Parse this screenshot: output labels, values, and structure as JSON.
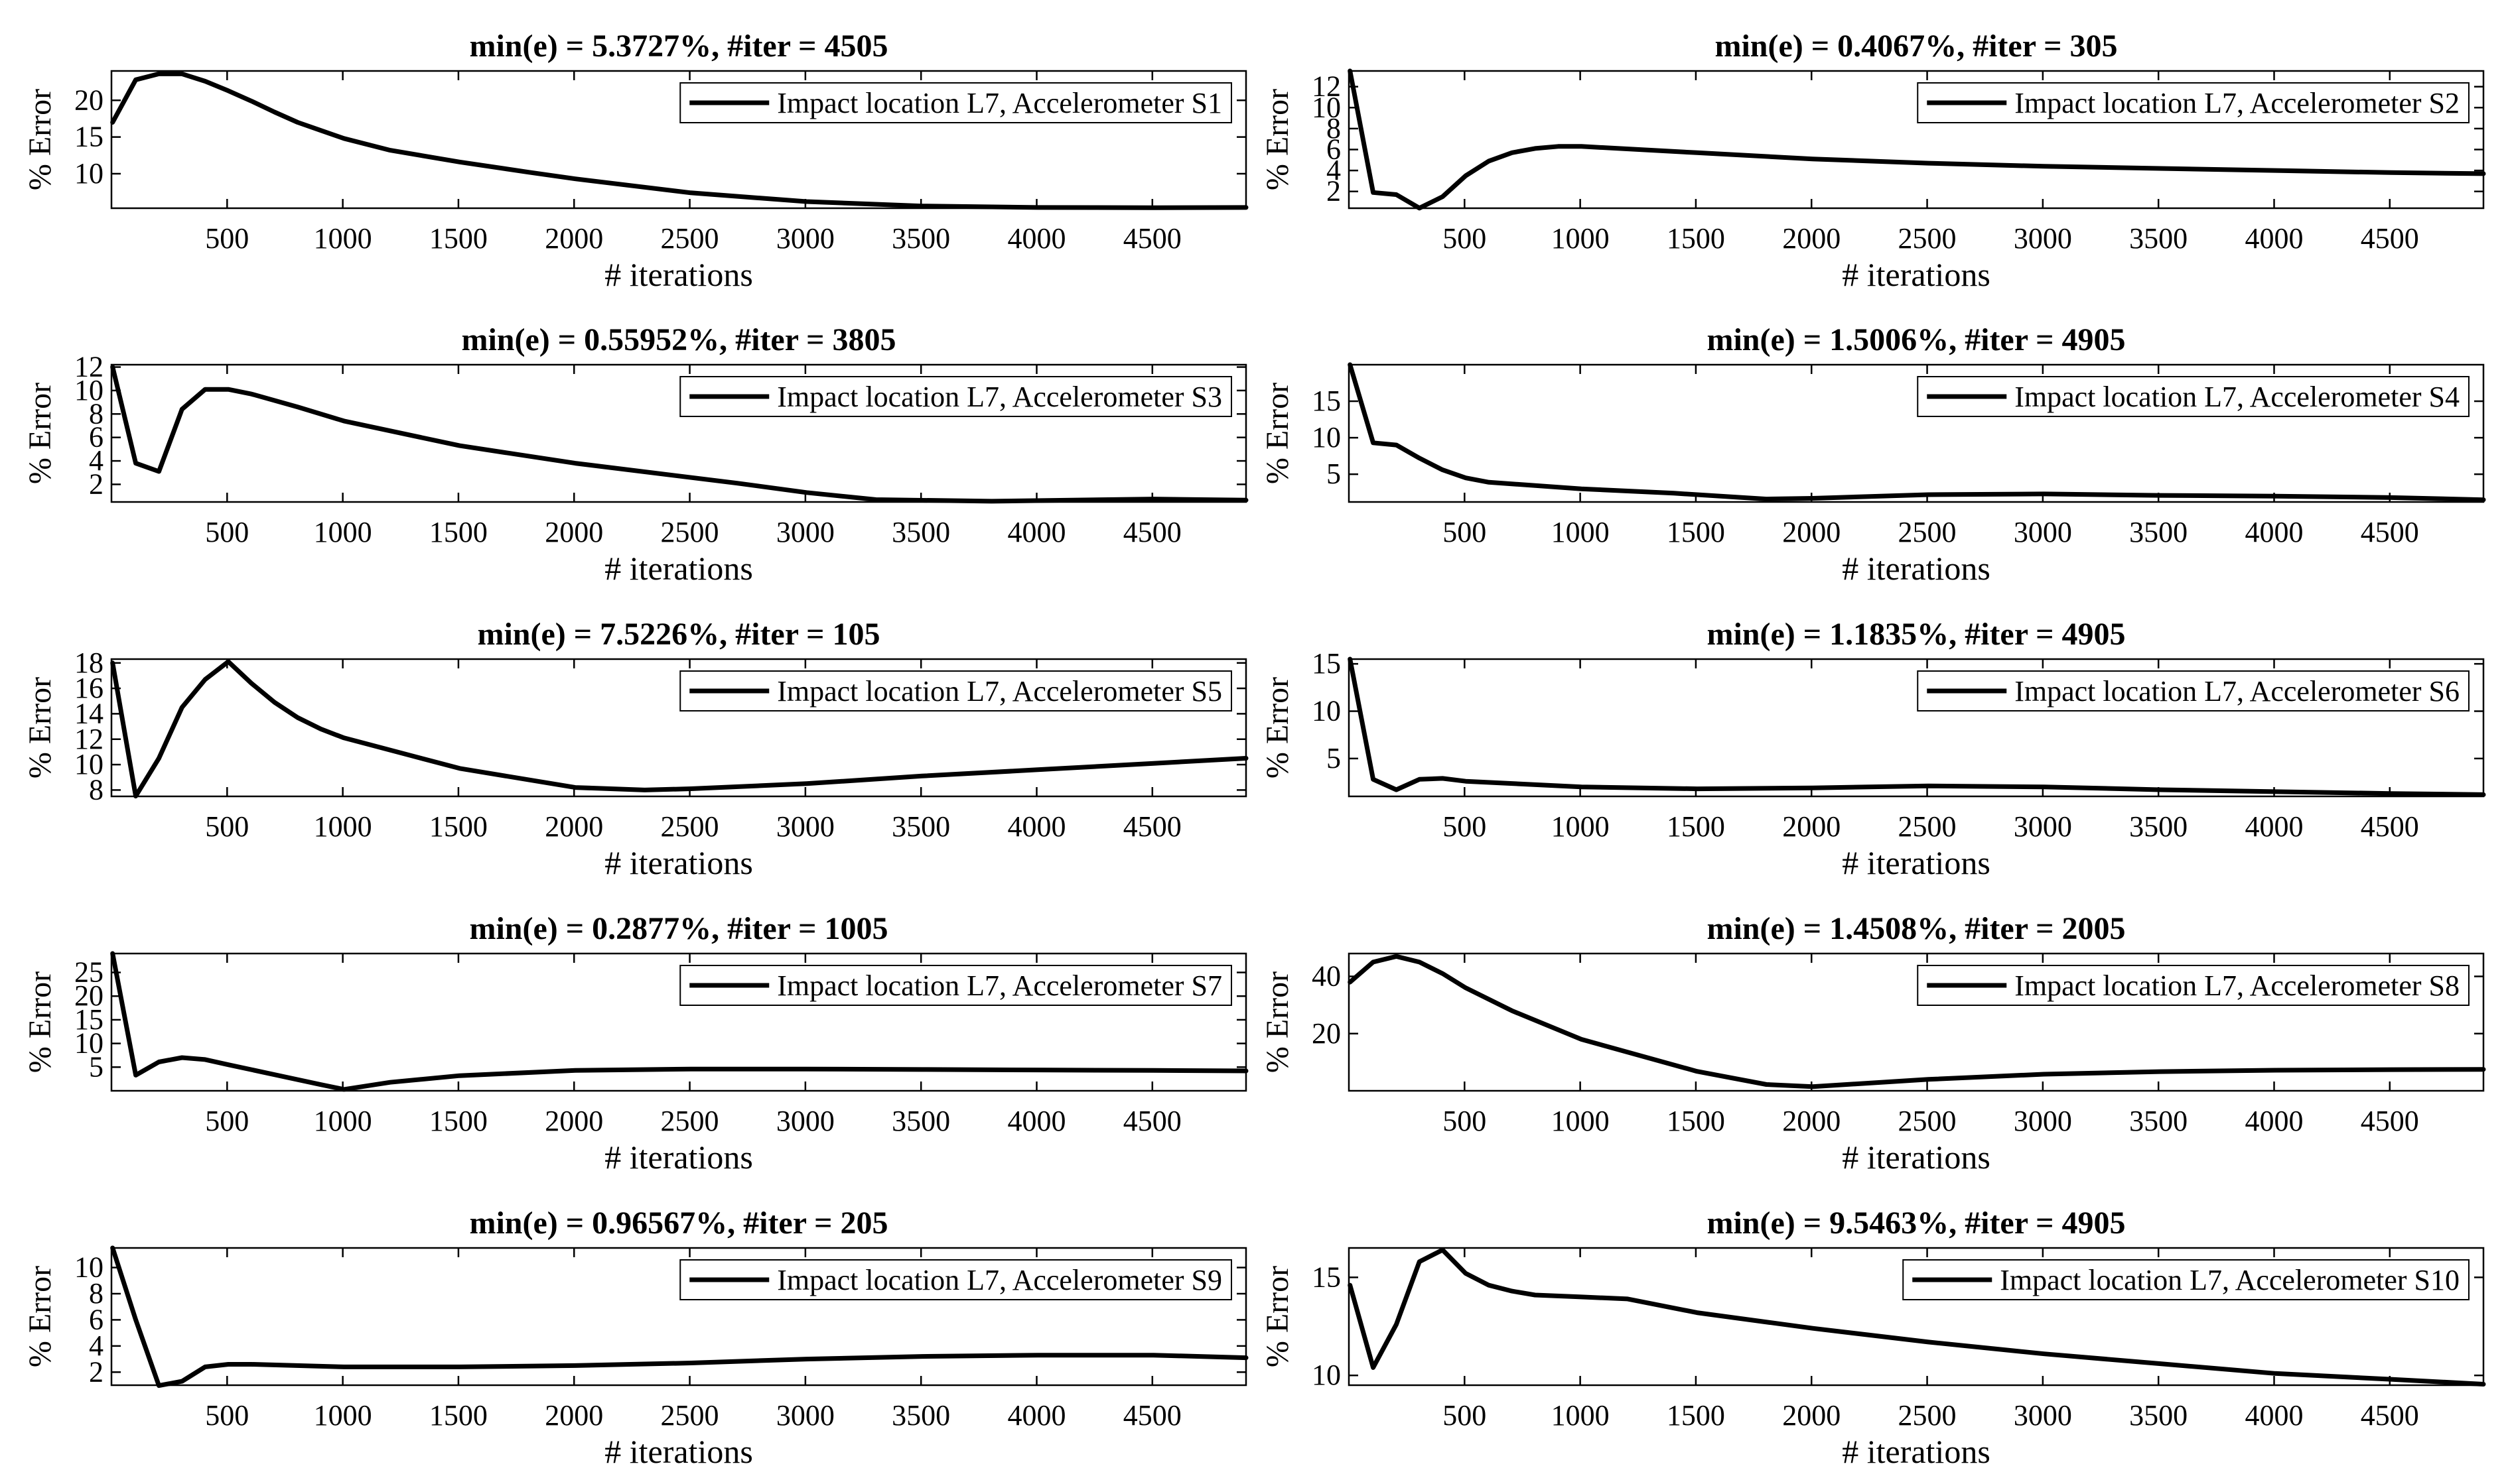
{
  "chart_data": [
    {
      "type": "line",
      "title": "min(e) = 5.3727%, #iter = 4505",
      "xlabel": "# iterations",
      "ylabel": "% Error",
      "xlim": [
        0,
        4905
      ],
      "ylim": [
        5.3,
        24
      ],
      "xticks": [
        500,
        1000,
        1500,
        2000,
        2500,
        3000,
        3500,
        4000,
        4500
      ],
      "yticks": [
        10,
        15,
        20
      ],
      "legend": "top-right",
      "grid": false,
      "series": [
        {
          "name": "Impact location L7, Accelerometer S1",
          "x": [
            5,
            105,
            205,
            305,
            405,
            505,
            605,
            705,
            805,
            905,
            1005,
            1205,
            1505,
            1805,
            2005,
            2505,
            3005,
            3505,
            4005,
            4505,
            4905
          ],
          "y": [
            17,
            22.8,
            23.6,
            23.6,
            22.6,
            21.3,
            19.9,
            18.4,
            17,
            15.9,
            14.8,
            13.2,
            11.6,
            10.2,
            9.3,
            7.4,
            6.2,
            5.6,
            5.4,
            5.37,
            5.4
          ]
        }
      ]
    },
    {
      "type": "line",
      "title": "min(e) = 0.4067%, #iter = 305",
      "xlabel": "# iterations",
      "ylabel": "% Error",
      "xlim": [
        0,
        4905
      ],
      "ylim": [
        0.4,
        13.5
      ],
      "xticks": [
        500,
        1000,
        1500,
        2000,
        2500,
        3000,
        3500,
        4000,
        4500
      ],
      "yticks": [
        2,
        4,
        6,
        8,
        10,
        12
      ],
      "legend": "top-right",
      "grid": false,
      "series": [
        {
          "name": "Impact location L7, Accelerometer S2",
          "x": [
            5,
            105,
            205,
            305,
            405,
            505,
            605,
            705,
            805,
            905,
            1005,
            1505,
            2005,
            2505,
            3005,
            3505,
            4005,
            4505,
            4905
          ],
          "y": [
            13.5,
            1.9,
            1.7,
            0.41,
            1.5,
            3.5,
            4.9,
            5.7,
            6.1,
            6.3,
            6.3,
            5.7,
            5.1,
            4.7,
            4.4,
            4.2,
            4.0,
            3.8,
            3.7
          ]
        }
      ]
    },
    {
      "type": "line",
      "title": "min(e) = 0.55952%, #iter = 3805",
      "xlabel": "# iterations",
      "ylabel": "% Error",
      "xlim": [
        0,
        4905
      ],
      "ylim": [
        0.5,
        12.2
      ],
      "xticks": [
        500,
        1000,
        1500,
        2000,
        2500,
        3000,
        3500,
        4000,
        4500
      ],
      "yticks": [
        2,
        4,
        6,
        8,
        10,
        12
      ],
      "legend": "top-right",
      "grid": false,
      "series": [
        {
          "name": "Impact location L7, Accelerometer S3",
          "x": [
            5,
            105,
            205,
            305,
            405,
            505,
            605,
            805,
            1005,
            1505,
            2005,
            2705,
            3005,
            3305,
            3805,
            4505,
            4905
          ],
          "y": [
            12,
            3.8,
            3.1,
            8.4,
            10.1,
            10.1,
            9.7,
            8.6,
            7.4,
            5.3,
            3.8,
            2.1,
            1.3,
            0.7,
            0.56,
            0.75,
            0.65
          ]
        }
      ]
    },
    {
      "type": "line",
      "title": "min(e) = 1.5006%, #iter = 4905",
      "xlabel": "# iterations",
      "ylabel": "% Error",
      "xlim": [
        0,
        4905
      ],
      "ylim": [
        1.2,
        20
      ],
      "xticks": [
        500,
        1000,
        1500,
        2000,
        2500,
        3000,
        3500,
        4000,
        4500
      ],
      "yticks": [
        5,
        10,
        15
      ],
      "legend": "top-right",
      "grid": false,
      "series": [
        {
          "name": "Impact location L7, Accelerometer S4",
          "x": [
            5,
            105,
            205,
            305,
            405,
            505,
            605,
            1005,
            1405,
            1805,
            2005,
            2505,
            3005,
            3505,
            4005,
            4505,
            4905
          ],
          "y": [
            20,
            9.3,
            9,
            7.2,
            5.6,
            4.5,
            3.9,
            3.0,
            2.4,
            1.6,
            1.7,
            2.2,
            2.3,
            2.1,
            2.0,
            1.8,
            1.5
          ]
        }
      ]
    },
    {
      "type": "line",
      "title": "min(e) = 7.5226%, #iter = 105",
      "xlabel": "# iterations",
      "ylabel": "% Error",
      "xlim": [
        0,
        4905
      ],
      "ylim": [
        7.5,
        18.3
      ],
      "xticks": [
        500,
        1000,
        1500,
        2000,
        2500,
        3000,
        3500,
        4000,
        4500
      ],
      "yticks": [
        8,
        10,
        12,
        14,
        16,
        18
      ],
      "legend": "top-right",
      "grid": false,
      "series": [
        {
          "name": "Impact location L7, Accelerometer S5",
          "x": [
            5,
            105,
            205,
            305,
            405,
            505,
            605,
            705,
            805,
            905,
            1005,
            1505,
            2005,
            2305,
            2505,
            3005,
            3505,
            4005,
            4505,
            4905
          ],
          "y": [
            18,
            7.52,
            10.5,
            14.5,
            16.7,
            18.1,
            16.4,
            14.9,
            13.7,
            12.8,
            12.1,
            9.7,
            8.2,
            8.0,
            8.1,
            8.5,
            9.1,
            9.6,
            10.1,
            10.5
          ]
        }
      ]
    },
    {
      "type": "line",
      "title": "min(e) = 1.1835%, #iter = 4905",
      "xlabel": "# iterations",
      "ylabel": "% Error",
      "xlim": [
        0,
        4905
      ],
      "ylim": [
        1,
        15.5
      ],
      "xticks": [
        500,
        1000,
        1500,
        2000,
        2500,
        3000,
        3500,
        4000,
        4500
      ],
      "yticks": [
        5,
        10,
        15
      ],
      "legend": "top-right",
      "grid": false,
      "series": [
        {
          "name": "Impact location L7, Accelerometer S6",
          "x": [
            5,
            105,
            205,
            305,
            405,
            505,
            1005,
            1505,
            2005,
            2505,
            3005,
            3505,
            4005,
            4505,
            4905
          ],
          "y": [
            15.5,
            2.8,
            1.7,
            2.8,
            2.9,
            2.6,
            2.0,
            1.8,
            1.9,
            2.1,
            2.0,
            1.7,
            1.5,
            1.3,
            1.18
          ]
        }
      ]
    },
    {
      "type": "line",
      "title": "min(e) = 0.2877%, #iter = 1005",
      "xlabel": "# iterations",
      "ylabel": "% Error",
      "xlim": [
        0,
        4905
      ],
      "ylim": [
        0,
        29
      ],
      "xticks": [
        500,
        1000,
        1500,
        2000,
        2500,
        3000,
        3500,
        4000,
        4500
      ],
      "yticks": [
        5,
        10,
        15,
        20,
        25
      ],
      "legend": "top-right",
      "grid": false,
      "series": [
        {
          "name": "Impact location L7, Accelerometer S7",
          "x": [
            5,
            105,
            205,
            305,
            405,
            505,
            705,
            905,
            1005,
            1205,
            1505,
            2005,
            2505,
            3005,
            3505,
            4005,
            4505,
            4905
          ],
          "y": [
            29,
            3.3,
            6.1,
            7.0,
            6.6,
            5.5,
            3.4,
            1.3,
            0.29,
            1.8,
            3.2,
            4.3,
            4.6,
            4.6,
            4.5,
            4.4,
            4.3,
            4.2
          ]
        }
      ]
    },
    {
      "type": "line",
      "title": "min(e) = 1.4508%, #iter = 2005",
      "xlabel": "# iterations",
      "ylabel": "% Error",
      "xlim": [
        0,
        4905
      ],
      "ylim": [
        0,
        48
      ],
      "xticks": [
        500,
        1000,
        1500,
        2000,
        2500,
        3000,
        3500,
        4000,
        4500
      ],
      "yticks": [
        20,
        40
      ],
      "legend": "top-right",
      "grid": false,
      "series": [
        {
          "name": "Impact location L7, Accelerometer S8",
          "x": [
            5,
            105,
            205,
            305,
            405,
            505,
            705,
            1005,
            1505,
            1805,
            2005,
            2505,
            3005,
            3505,
            4005,
            4505,
            4905
          ],
          "y": [
            38,
            45,
            47,
            45,
            41,
            36,
            28,
            18,
            6.8,
            2.2,
            1.45,
            4.0,
            5.8,
            6.7,
            7.2,
            7.4,
            7.5
          ]
        }
      ]
    },
    {
      "type": "line",
      "title": "min(e) = 0.96567%, #iter = 205",
      "xlabel": "# iterations",
      "ylabel": "% Error",
      "xlim": [
        0,
        4905
      ],
      "ylim": [
        1,
        11.5
      ],
      "xticks": [
        500,
        1000,
        1500,
        2000,
        2500,
        3000,
        3500,
        4000,
        4500
      ],
      "yticks": [
        2,
        4,
        6,
        8,
        10
      ],
      "legend": "top-right",
      "grid": false,
      "series": [
        {
          "name": "Impact location L7, Accelerometer S9",
          "x": [
            5,
            105,
            205,
            305,
            405,
            505,
            605,
            1005,
            1505,
            2005,
            2505,
            3005,
            3505,
            4005,
            4505,
            4905
          ],
          "y": [
            11.5,
            6.0,
            0.97,
            1.3,
            2.4,
            2.6,
            2.6,
            2.4,
            2.4,
            2.5,
            2.7,
            3.0,
            3.2,
            3.3,
            3.3,
            3.1
          ]
        }
      ]
    },
    {
      "type": "line",
      "title": "min(e) = 9.5463%, #iter = 4905",
      "xlabel": "# iterations",
      "ylabel": "% Error",
      "xlim": [
        0,
        4905
      ],
      "ylim": [
        9.5,
        16.5
      ],
      "xticks": [
        500,
        1000,
        1500,
        2000,
        2500,
        3000,
        3500,
        4000,
        4500
      ],
      "yticks": [
        10,
        15
      ],
      "legend": "top-right",
      "grid": false,
      "series": [
        {
          "name": "Impact location L7, Accelerometer S10",
          "x": [
            5,
            105,
            205,
            305,
            405,
            505,
            605,
            705,
            805,
            1005,
            1205,
            1505,
            2005,
            2505,
            3005,
            3505,
            4005,
            4505,
            4905
          ],
          "y": [
            14.6,
            10.4,
            12.6,
            15.8,
            16.4,
            15.2,
            14.6,
            14.3,
            14.1,
            14.0,
            13.9,
            13.2,
            12.4,
            11.7,
            11.1,
            10.6,
            10.1,
            9.8,
            9.55
          ]
        }
      ]
    }
  ]
}
